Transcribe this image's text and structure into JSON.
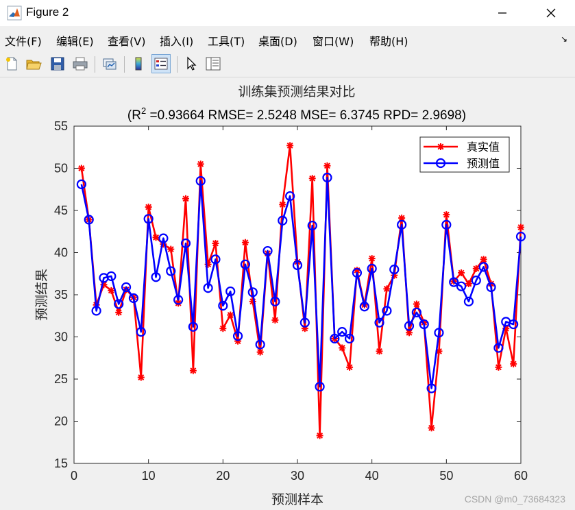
{
  "window": {
    "title": "Figure 2",
    "min_glyph": "—",
    "close_glyph": "✕"
  },
  "menu": [
    {
      "label": "文件(F)"
    },
    {
      "label": "编辑(E)"
    },
    {
      "label": "查看(V)"
    },
    {
      "label": "插入(I)"
    },
    {
      "label": "工具(T)"
    },
    {
      "label": "桌面(D)"
    },
    {
      "label": "窗口(W)"
    },
    {
      "label": "帮助(H)"
    }
  ],
  "menu_dock_glyph": "↘",
  "toolbar": [
    {
      "icon": "new-figure-icon"
    },
    {
      "icon": "open-file-icon"
    },
    {
      "icon": "save-icon"
    },
    {
      "icon": "print-icon"
    },
    {
      "icon": "link-plot-icon"
    },
    {
      "icon": "insert-colorbar-icon"
    },
    {
      "icon": "insert-legend-icon"
    },
    {
      "icon": "edit-plot-icon"
    },
    {
      "icon": "property-inspector-icon"
    }
  ],
  "watermark": "CSDN @m0_73684323",
  "chart_data": {
    "type": "line",
    "title": "训练集预测结果对比",
    "subtitle": {
      "prefix": "(R",
      "sup": "2",
      "rest": " =0.93664 RMSE= 2.5248 MSE= 6.3745 RPD= 2.9698)"
    },
    "xlabel": "预测样本",
    "ylabel": "预测结果",
    "xlim": [
      0,
      60
    ],
    "ylim": [
      15,
      55
    ],
    "xticks": [
      0,
      10,
      20,
      30,
      40,
      50,
      60
    ],
    "yticks": [
      15,
      20,
      25,
      30,
      35,
      40,
      45,
      50,
      55
    ],
    "grid": false,
    "legend_position": "top-right",
    "x": [
      1,
      2,
      3,
      4,
      5,
      6,
      7,
      8,
      9,
      10,
      11,
      12,
      13,
      14,
      15,
      16,
      17,
      18,
      19,
      20,
      21,
      22,
      23,
      24,
      25,
      26,
      27,
      28,
      29,
      30,
      31,
      32,
      33,
      34,
      35,
      36,
      37,
      38,
      39,
      40,
      41,
      42,
      43,
      44,
      45,
      46,
      47,
      48,
      49,
      50,
      51,
      52,
      53,
      54,
      55,
      56,
      57,
      58,
      59,
      60
    ],
    "series": [
      {
        "name": "真实值",
        "color": "#ff0000",
        "marker": "asterisk",
        "values": [
          50.0,
          43.9,
          33.8,
          36.2,
          35.5,
          32.9,
          35.6,
          34.7,
          25.2,
          45.4,
          41.8,
          41.0,
          40.4,
          34.0,
          46.4,
          26.0,
          50.5,
          38.6,
          41.1,
          31.0,
          32.6,
          29.5,
          41.2,
          34.2,
          28.2,
          39.9,
          32.0,
          45.7,
          52.7,
          38.9,
          31.0,
          48.8,
          18.3,
          50.3,
          29.8,
          28.7,
          26.4,
          37.9,
          33.8,
          39.3,
          28.3,
          35.7,
          37.3,
          44.1,
          30.5,
          33.9,
          31.7,
          19.2,
          28.3,
          44.5,
          36.6,
          37.6,
          36.3,
          38.1,
          39.2,
          36.3,
          26.4,
          31.0,
          26.8,
          43.0
        ]
      },
      {
        "name": "预测值",
        "color": "#0000ff",
        "marker": "circle",
        "values": [
          48.1,
          43.9,
          33.1,
          37.0,
          37.2,
          33.9,
          35.9,
          34.6,
          30.6,
          44.0,
          37.1,
          41.7,
          37.8,
          34.4,
          41.1,
          31.2,
          48.5,
          35.8,
          39.2,
          33.7,
          35.4,
          30.1,
          38.6,
          35.3,
          29.1,
          40.2,
          34.2,
          43.8,
          46.7,
          38.5,
          31.7,
          43.2,
          24.1,
          48.9,
          29.8,
          30.6,
          29.8,
          37.6,
          33.6,
          38.1,
          31.7,
          33.1,
          38.0,
          43.3,
          31.3,
          32.9,
          31.5,
          23.9,
          30.5,
          43.3,
          36.5,
          36.0,
          34.2,
          36.7,
          38.3,
          35.9,
          28.7,
          31.8,
          31.5,
          41.9
        ]
      }
    ]
  }
}
